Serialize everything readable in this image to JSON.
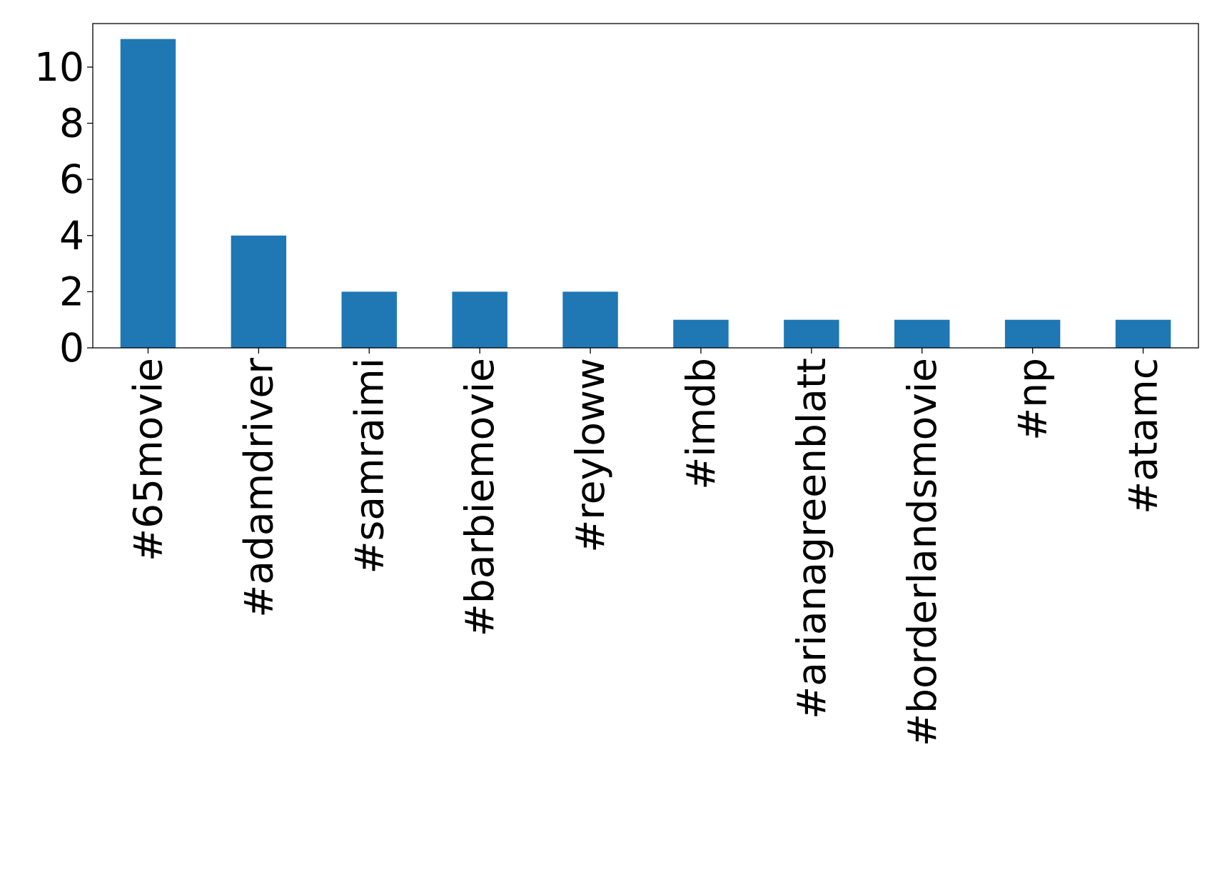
{
  "chart_data": {
    "type": "bar",
    "title": "",
    "xlabel": "",
    "ylabel": "",
    "categories": [
      "#65movie",
      "#adamdriver",
      "#samraimi",
      "#barbiemovie",
      "#reyloww",
      "#imdb",
      "#arianagreenblatt",
      "#borderlandsmovie",
      "#np",
      "#atamc"
    ],
    "values": [
      11,
      4,
      2,
      2,
      2,
      1,
      1,
      1,
      1,
      1
    ],
    "ylim": [
      0,
      11.55
    ],
    "yticks": [
      0,
      2,
      4,
      6,
      8,
      10
    ],
    "grid": false,
    "legend": "none",
    "bar_color": "#1f77b4"
  }
}
